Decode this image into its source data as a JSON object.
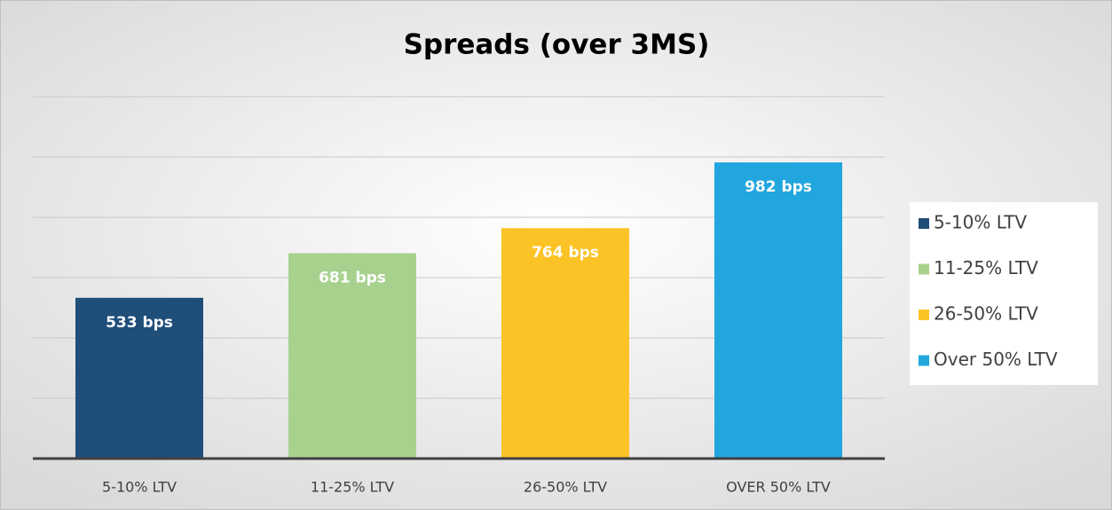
{
  "chart_data": {
    "type": "bar",
    "title": "Spreads (over 3MS)",
    "categories": [
      "5-10% LTV",
      "11-25% LTV",
      "26-50% LTV",
      "OVER 50% LTV"
    ],
    "values": [
      533,
      681,
      764,
      982
    ],
    "value_labels": [
      "533 bps",
      "681 bps",
      "764 bps",
      "982 bps"
    ],
    "colors": [
      "#1f4e79",
      "#a9d18e",
      "#fbc325",
      "#21a6de"
    ],
    "legend": [
      "5-10% LTV",
      "11-25% LTV",
      "26-50% LTV",
      "Over 50% LTV"
    ],
    "legend_position": "right",
    "ylim": [
      0,
      1200
    ],
    "yticks": [
      0,
      200,
      400,
      600,
      800,
      1000,
      1200
    ],
    "grid": true
  }
}
